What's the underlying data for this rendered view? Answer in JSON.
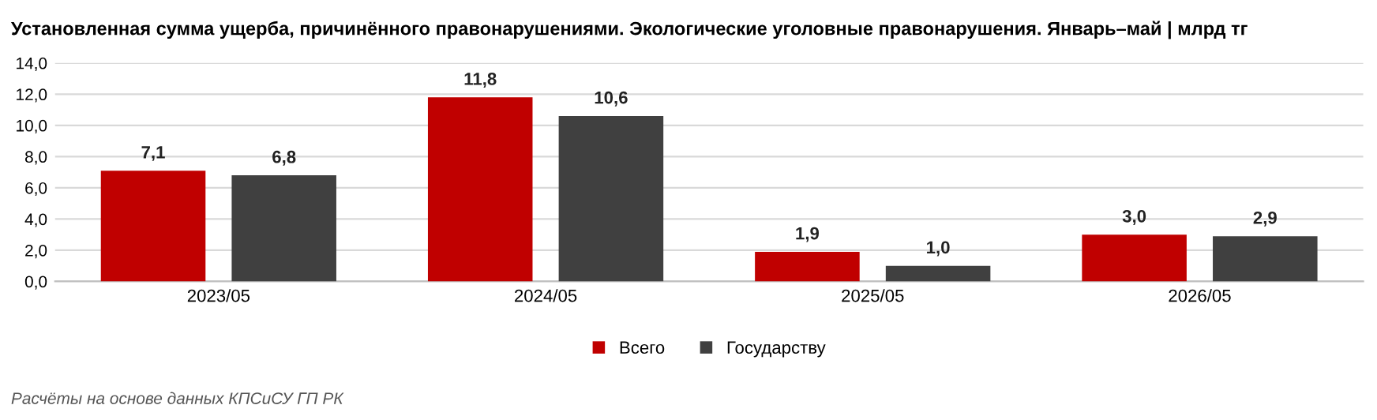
{
  "chart_data": {
    "type": "bar",
    "title": "Установленная сумма ущерба, причинённого правонарушениями. Экологические уголовные правонарушения. Январь–май | млрд тг",
    "categories": [
      "2023/05",
      "2024/05",
      "2025/05",
      "2026/05"
    ],
    "series": [
      {
        "name": "Всего",
        "color": "#c00000",
        "values": [
          7.1,
          11.8,
          1.9,
          3.0
        ],
        "value_labels": [
          "7,1",
          "11,8",
          "1,9",
          "3,0"
        ]
      },
      {
        "name": "Государству",
        "color": "#404040",
        "values": [
          6.8,
          10.6,
          1.0,
          2.9
        ],
        "value_labels": [
          "6,8",
          "10,6",
          "1,0",
          "2,9"
        ]
      }
    ],
    "ylim": [
      0,
      14
    ],
    "yticks": [
      {
        "value": 0,
        "label": "0,0"
      },
      {
        "value": 2,
        "label": "2,0"
      },
      {
        "value": 4,
        "label": "4,0"
      },
      {
        "value": 6,
        "label": "6,0"
      },
      {
        "value": 8,
        "label": "8,0"
      },
      {
        "value": 10,
        "label": "10,0"
      },
      {
        "value": 12,
        "label": "12,0"
      },
      {
        "value": 14,
        "label": "14,0"
      }
    ],
    "grid": "y",
    "legend": "bottom",
    "annotations": [
      "Расчёты на основе данных КПСиСУ ГП РК"
    ]
  }
}
